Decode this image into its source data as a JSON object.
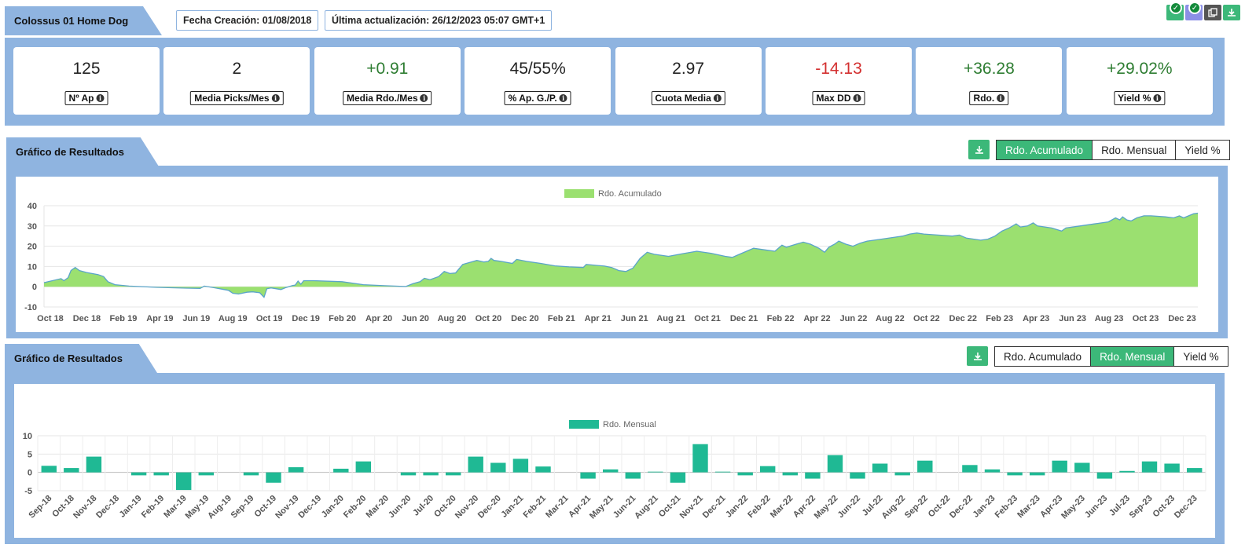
{
  "header": {
    "title": "Colossus 01 Home Dog",
    "created": "Fecha Creación: 01/08/2018",
    "updated": "Última actualización: 26/12/2023 05:07 GMT+1"
  },
  "stats": [
    {
      "value": "125",
      "label": "Nº Ap",
      "tone": "neutral"
    },
    {
      "value": "2",
      "label": "Media Picks/Mes",
      "tone": "neutral"
    },
    {
      "value": "+0.91",
      "label": "Media Rdo./Mes",
      "tone": "pos"
    },
    {
      "value": "45/55%",
      "label": "% Ap. G./P.",
      "tone": "neutral"
    },
    {
      "value": "2.97",
      "label": "Cuota Media",
      "tone": "neutral"
    },
    {
      "value": "-14.13",
      "label": "Max DD",
      "tone": "neg"
    },
    {
      "value": "+36.28",
      "label": "Rdo.",
      "tone": "pos"
    },
    {
      "value": "+29.02%",
      "label": "Yield %",
      "tone": "pos"
    }
  ],
  "chart1": {
    "section_title": "Gráfico de Resultados",
    "tabs": [
      "Rdo. Acumulado",
      "Rdo. Mensual",
      "Yield %"
    ],
    "active_tab": 0
  },
  "chart2": {
    "section_title": "Gráfico de Resultados",
    "tabs": [
      "Rdo. Acumulado",
      "Rdo. Mensual",
      "Yield %"
    ],
    "active_tab": 1
  },
  "colors": {
    "panel": "#8fb4e0",
    "accent": "#3cb879",
    "area_fill": "#9be070",
    "area_line": "#5aa4c9",
    "bar": "#1fb994"
  },
  "chart_data": [
    {
      "type": "area",
      "legend": "Rdo. Acumulado",
      "legend_position": "top-center",
      "ylim": [
        -10,
        40
      ],
      "yticks": [
        -10,
        0,
        10,
        20,
        30,
        40
      ],
      "xticks": [
        "Oct 18",
        "Dec 18",
        "Feb 19",
        "Apr 19",
        "Jun 19",
        "Aug 19",
        "Oct 19",
        "Dec 19",
        "Feb 20",
        "Apr 20",
        "Jun 20",
        "Aug 20",
        "Oct 20",
        "Dec 20",
        "Feb 21",
        "Apr 21",
        "Jun 21",
        "Aug 21",
        "Oct 21",
        "Dec 21",
        "Feb 22",
        "Apr 22",
        "Jun 22",
        "Aug 22",
        "Oct 22",
        "Dec 22",
        "Feb 23",
        "Apr 23",
        "Jun 23",
        "Aug 23",
        "Oct 23",
        "Dec 23"
      ],
      "grid": true,
      "points": [
        [
          0,
          2
        ],
        [
          1.2,
          4
        ],
        [
          1.4,
          3
        ],
        [
          1.7,
          4.5
        ],
        [
          1.9,
          8
        ],
        [
          2.2,
          9.5
        ],
        [
          2.5,
          8
        ],
        [
          3,
          7
        ],
        [
          3.8,
          6
        ],
        [
          4.2,
          5
        ],
        [
          4.5,
          2.5
        ],
        [
          5,
          1
        ],
        [
          6,
          0.3
        ],
        [
          8,
          -0.3
        ],
        [
          10,
          -0.7
        ],
        [
          11,
          -0.8
        ],
        [
          11.3,
          0.3
        ],
        [
          12,
          -0.5
        ],
        [
          13,
          -1.8
        ],
        [
          13.3,
          -3.2
        ],
        [
          13.7,
          -3.6
        ],
        [
          14.3,
          -2.7
        ],
        [
          14.7,
          -2.5
        ],
        [
          15.2,
          -3
        ],
        [
          15.5,
          -5.2
        ],
        [
          15.7,
          -1
        ],
        [
          16,
          -0.6
        ],
        [
          16.7,
          -1.4
        ],
        [
          17,
          -0.5
        ],
        [
          17.5,
          0.6
        ],
        [
          17.7,
          0.8
        ],
        [
          17.9,
          2.8
        ],
        [
          18.1,
          1.2
        ],
        [
          18.3,
          3
        ],
        [
          19,
          3
        ],
        [
          21,
          2.5
        ],
        [
          22.5,
          1
        ],
        [
          24,
          0.5
        ],
        [
          25.5,
          0.1
        ],
        [
          26,
          1.5
        ],
        [
          26.5,
          2.5
        ],
        [
          26.8,
          4.2
        ],
        [
          27.2,
          3.5
        ],
        [
          27.8,
          5
        ],
        [
          28.2,
          7.5
        ],
        [
          28.6,
          6.5
        ],
        [
          29,
          6.8
        ],
        [
          29.5,
          11
        ],
        [
          30,
          12
        ],
        [
          30.5,
          13
        ],
        [
          31,
          12.2
        ],
        [
          31.3,
          12.5
        ],
        [
          31.5,
          14
        ],
        [
          31.7,
          13
        ],
        [
          32.2,
          12.5
        ],
        [
          33,
          11.5
        ],
        [
          33.3,
          13.5
        ],
        [
          34,
          12.5
        ],
        [
          35,
          11.5
        ],
        [
          36,
          10.3
        ],
        [
          37,
          9.8
        ],
        [
          38,
          9.5
        ],
        [
          38.2,
          11
        ],
        [
          39,
          10.5
        ],
        [
          39.5,
          10.2
        ],
        [
          40,
          9.5
        ],
        [
          40.5,
          8
        ],
        [
          41,
          7.5
        ],
        [
          41.5,
          9.2
        ],
        [
          42,
          14
        ],
        [
          42.5,
          17
        ],
        [
          43,
          16
        ],
        [
          44,
          15
        ],
        [
          45,
          16.3
        ],
        [
          46,
          17.5
        ],
        [
          47,
          16.5
        ],
        [
          48,
          15
        ],
        [
          48.5,
          14.5
        ],
        [
          49,
          16
        ],
        [
          50,
          19
        ],
        [
          51,
          18
        ],
        [
          51.5,
          17.5
        ],
        [
          52,
          20.5
        ],
        [
          52.3,
          19.5
        ],
        [
          53,
          21
        ],
        [
          53.5,
          22
        ],
        [
          54,
          21
        ],
        [
          54.6,
          19
        ],
        [
          55,
          17
        ],
        [
          55.3,
          19.5
        ],
        [
          55.7,
          21
        ],
        [
          56,
          22.5
        ],
        [
          56.5,
          21
        ],
        [
          57,
          20
        ],
        [
          57.5,
          21.5
        ],
        [
          58,
          22.5
        ],
        [
          59,
          23.5
        ],
        [
          60,
          24.5
        ],
        [
          60.5,
          25
        ],
        [
          61,
          26
        ],
        [
          61.5,
          26.5
        ],
        [
          62,
          26
        ],
        [
          63,
          25.5
        ],
        [
          64,
          25
        ],
        [
          64.5,
          25.5
        ],
        [
          65,
          24
        ],
        [
          66,
          23
        ],
        [
          66.5,
          23.5
        ],
        [
          67,
          25
        ],
        [
          67.5,
          27.5
        ],
        [
          68,
          29
        ],
        [
          68.5,
          31
        ],
        [
          68.8,
          29.5
        ],
        [
          69.3,
          30
        ],
        [
          69.7,
          31.5
        ],
        [
          70,
          30
        ],
        [
          71,
          29
        ],
        [
          71.7,
          27.5
        ],
        [
          72,
          29
        ],
        [
          73,
          30
        ],
        [
          74,
          31
        ],
        [
          75,
          32
        ],
        [
          75.5,
          34
        ],
        [
          75.8,
          33
        ],
        [
          76,
          34.5
        ],
        [
          76.3,
          33
        ],
        [
          76.6,
          32.5
        ],
        [
          77,
          34
        ],
        [
          77.5,
          35
        ],
        [
          78,
          35
        ],
        [
          79,
          34.5
        ],
        [
          79.6,
          34
        ],
        [
          80,
          35
        ],
        [
          80.3,
          34
        ],
        [
          81,
          36
        ],
        [
          81.3,
          36.3
        ]
      ],
      "x_max": 81.3
    },
    {
      "type": "bar",
      "legend": "Rdo. Mensual",
      "legend_position": "top-center",
      "ylim": [
        -5,
        10
      ],
      "yticks": [
        -5,
        0,
        5,
        10
      ],
      "grid": true,
      "categories": [
        "Sep-18",
        "Oct-18",
        "Nov-18",
        "Dec-18",
        "Jan-19",
        "Feb-19",
        "Mar-19",
        "May-19",
        "Aug-19",
        "Sep-19",
        "Oct-19",
        "Nov-19",
        "Dec-19",
        "Jan-20",
        "Feb-20",
        "Mar-20",
        "Jun-20",
        "Jul-20",
        "Oct-20",
        "Nov-20",
        "Dec-20",
        "Jan-21",
        "Feb-21",
        "Mar-21",
        "Apr-21",
        "May-21",
        "Jun-21",
        "Aug-21",
        "Oct-21",
        "Nov-21",
        "Dec-21",
        "Jan-22",
        "Feb-22",
        "Mar-22",
        "Apr-22",
        "May-22",
        "Jun-22",
        "Jul-22",
        "Aug-22",
        "Sep-22",
        "Oct-22",
        "Dec-22",
        "Jan-23",
        "Feb-23",
        "Mar-23",
        "Apr-23",
        "May-23",
        "Jun-23",
        "Jul-23",
        "Sep-23",
        "Oct-23",
        "Dec-23"
      ],
      "values": [
        1.8,
        1.2,
        4.3,
        0,
        -0.8,
        -0.8,
        -4.8,
        -0.8,
        0,
        -0.8,
        -2.8,
        1.4,
        0,
        1,
        3,
        0,
        -0.8,
        -0.8,
        -0.8,
        4.3,
        2.6,
        3.7,
        1.6,
        0,
        -1.7,
        0.8,
        -1.7,
        0.2,
        -2.8,
        7.7,
        0.2,
        -0.8,
        1.7,
        -0.8,
        -1.7,
        4.7,
        -1.7,
        2.4,
        -0.8,
        3.2,
        0,
        2,
        0.8,
        -0.8,
        -0.8,
        3.2,
        2.6,
        -1.7,
        0.4,
        3,
        2.4,
        1.2
      ]
    }
  ]
}
